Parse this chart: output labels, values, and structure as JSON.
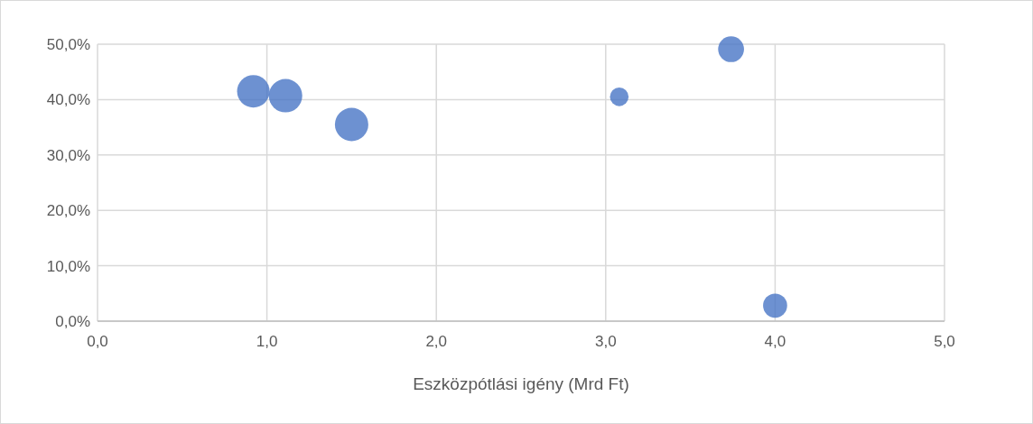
{
  "chart_data": {
    "type": "bubble",
    "xlabel": "Eszközpótlási igény (Mrd Ft)",
    "x": [
      0.92,
      1.11,
      1.5,
      3.08,
      3.74,
      4.0
    ],
    "values": [
      41.5,
      40.7,
      35.5,
      40.5,
      49.1,
      2.8
    ],
    "sizes": [
      0.95,
      1,
      1,
      0.31,
      0.6,
      0.52
    ],
    "color": "#4472c4",
    "xlim": [
      0,
      5
    ],
    "ylim": [
      0,
      50
    ],
    "xticks": [
      {
        "value": 0,
        "label": "0,0"
      },
      {
        "value": 1,
        "label": "1,0"
      },
      {
        "value": 2,
        "label": "2,0"
      },
      {
        "value": 3,
        "label": "3,0"
      },
      {
        "value": 4,
        "label": "4,0"
      },
      {
        "value": 5,
        "label": "5,0"
      }
    ],
    "yticks": [
      {
        "value": 0,
        "label": "0,0%"
      },
      {
        "value": 10,
        "label": "10,0%"
      },
      {
        "value": 20,
        "label": "20,0%"
      },
      {
        "value": 30,
        "label": "30,0%"
      },
      {
        "value": 40,
        "label": "40,0%"
      },
      {
        "value": 50,
        "label": "50,0%"
      }
    ],
    "grid": true
  }
}
